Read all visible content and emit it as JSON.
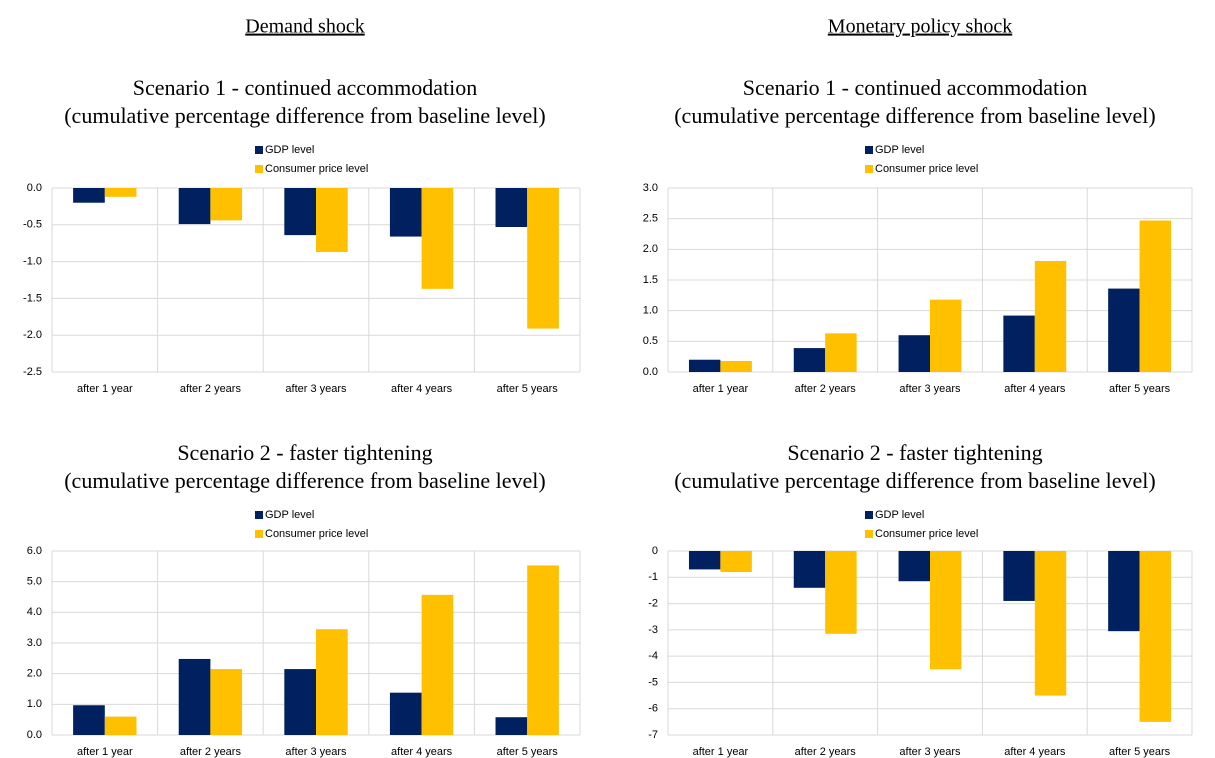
{
  "column_headers": [
    "Demand shock",
    "Monetary policy shock"
  ],
  "chart_data": [
    {
      "type": "bar",
      "title": "Scenario 1 - continued accommodation",
      "subtitle": "(cumulative percentage difference from baseline level)",
      "categories": [
        "after 1 year",
        "after 2 years",
        "after 3 years",
        "after 4 years",
        "after 5 years"
      ],
      "series": [
        {
          "name": "GDP level",
          "color": "#002060",
          "values": [
            -0.2,
            -0.49,
            -0.64,
            -0.66,
            -0.53
          ]
        },
        {
          "name": "Consumer price level",
          "color": "#FFC000",
          "values": [
            -0.12,
            -0.44,
            -0.87,
            -1.37,
            -1.91
          ]
        }
      ],
      "ylim": [
        -2.5,
        0
      ],
      "yticks": [
        {
          "value": 0,
          "label": "0.0"
        },
        -0.5,
        {
          "value": -1,
          "label": "-1.0"
        },
        -1.5,
        {
          "value": -2,
          "label": "-2.0"
        },
        -2.5
      ],
      "grid": true
    },
    {
      "type": "bar",
      "title": "Scenario 1 - continued accommodation",
      "subtitle": "(cumulative percentage difference from baseline level)",
      "categories": [
        "after 1 year",
        "after 2 years",
        "after 3 years",
        "after 4 years",
        "after 5 years"
      ],
      "series": [
        {
          "name": "GDP level",
          "color": "#002060",
          "values": [
            0.2,
            0.39,
            0.6,
            0.92,
            1.36
          ]
        },
        {
          "name": "Consumer price level",
          "color": "#FFC000",
          "values": [
            0.18,
            0.63,
            1.18,
            1.81,
            2.47
          ]
        }
      ],
      "ylim": [
        0,
        3
      ],
      "yticks": [
        {
          "value": 0,
          "label": "0.0"
        },
        0.5,
        {
          "value": 1,
          "label": "1.0"
        },
        1.5,
        {
          "value": 2,
          "label": "2.0"
        },
        2.5,
        {
          "value": 3,
          "label": "3.0"
        }
      ],
      "grid": true
    },
    {
      "type": "bar",
      "title": "Scenario 2 - faster tightening",
      "subtitle": "(cumulative percentage difference from baseline level)",
      "categories": [
        "after 1 year",
        "after 2 years",
        "after 3 years",
        "after 4 years",
        "after 5 years"
      ],
      "series": [
        {
          "name": "GDP level",
          "color": "#002060",
          "values": [
            0.97,
            2.48,
            2.15,
            1.38,
            0.58
          ]
        },
        {
          "name": "Consumer price level",
          "color": "#FFC000",
          "values": [
            0.6,
            2.15,
            3.45,
            4.57,
            5.53
          ]
        }
      ],
      "ylim": [
        0,
        6
      ],
      "yticks": [
        {
          "value": 0,
          "label": "0.0"
        },
        {
          "value": 1,
          "label": "1.0"
        },
        {
          "value": 2,
          "label": "2.0"
        },
        {
          "value": 3,
          "label": "3.0"
        },
        {
          "value": 4,
          "label": "4.0"
        },
        {
          "value": 5,
          "label": "5.0"
        },
        {
          "value": 6,
          "label": "6.0"
        }
      ],
      "grid": true
    },
    {
      "type": "bar",
      "title": "Scenario 2 - faster tightening",
      "subtitle": "(cumulative percentage difference from baseline level)",
      "categories": [
        "after 1 year",
        "after 2 years",
        "after 3 years",
        "after 4 years",
        "after 5 years"
      ],
      "series": [
        {
          "name": "GDP level",
          "color": "#002060",
          "values": [
            -0.7,
            -1.4,
            -1.15,
            -1.9,
            -3.05
          ]
        },
        {
          "name": "Consumer price level",
          "color": "#FFC000",
          "values": [
            -0.8,
            -3.15,
            -4.5,
            -5.5,
            -6.5
          ]
        }
      ],
      "ylim": [
        -7,
        0
      ],
      "yticks": [
        0,
        -1,
        -2,
        -3,
        -4,
        -5,
        -6,
        -7
      ],
      "grid": true
    }
  ]
}
